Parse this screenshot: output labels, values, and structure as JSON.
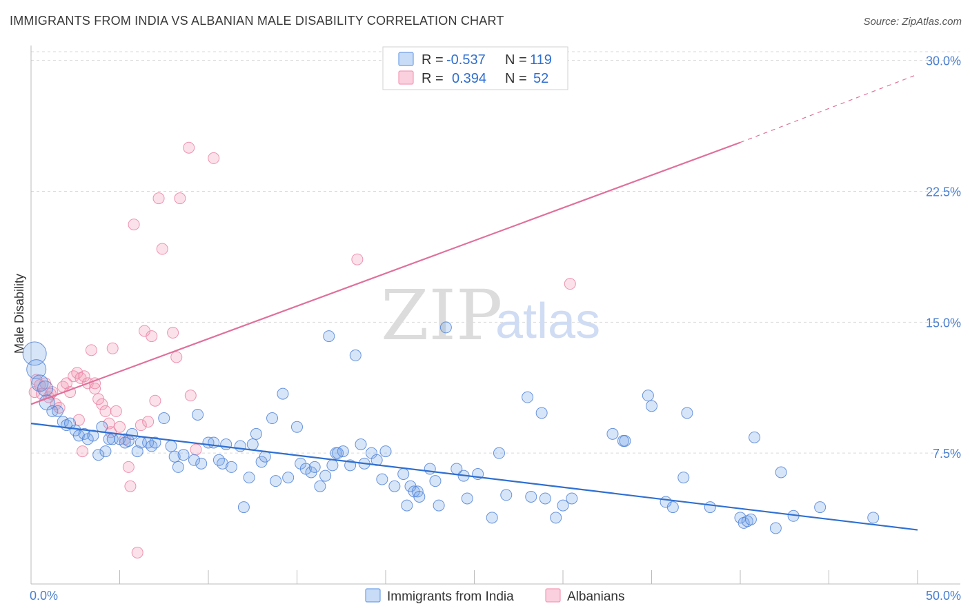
{
  "title": "IMMIGRANTS FROM INDIA VS ALBANIAN MALE DISABILITY CORRELATION CHART",
  "source": "Source: ZipAtlas.com",
  "watermark": {
    "zip": "ZIP",
    "atlas": "atlas"
  },
  "legend": {
    "r_label": "R =",
    "n_label": "N =",
    "rows": [
      {
        "r": "-0.537",
        "n": "119"
      },
      {
        "r": "0.394",
        "n": "52"
      }
    ]
  },
  "colors": {
    "india": "#6fa0e6",
    "india_line": "#2f6fd0",
    "albanians": "#f29bb6",
    "albanians_line": "#e0709a",
    "grid": "#d9d9d9",
    "axis_text": "#4a7fd0"
  },
  "chart_data": {
    "type": "scatter",
    "title": "IMMIGRANTS FROM INDIA VS ALBANIAN MALE DISABILITY CORRELATION CHART",
    "xlabel": "",
    "ylabel": "Male Disability",
    "xlim": [
      0,
      50
    ],
    "ylim": [
      0,
      30.5
    ],
    "x_tick_labels": [
      "0.0%",
      "50.0%"
    ],
    "y_ticks": [
      7.5,
      15.0,
      22.5,
      30.0
    ],
    "y_tick_labels": [
      "7.5%",
      "15.0%",
      "22.5%",
      "30.0%"
    ],
    "grid": "horizontal dashed",
    "legend_position": "top-center",
    "series": [
      {
        "name": "Immigrants from India",
        "r": -0.537,
        "n": 119,
        "trend": {
          "x0": 0,
          "y0": 9.2,
          "x1": 50,
          "y1": 3.1,
          "style": "solid"
        },
        "points": [
          [
            0.2,
            13.2
          ],
          [
            0.3,
            12.3
          ],
          [
            0.5,
            11.5
          ],
          [
            0.8,
            11.2
          ],
          [
            0.9,
            10.4
          ],
          [
            1.2,
            9.9
          ],
          [
            1.5,
            9.9
          ],
          [
            1.8,
            9.3
          ],
          [
            2.0,
            9.1
          ],
          [
            2.2,
            9.2
          ],
          [
            2.5,
            8.8
          ],
          [
            2.7,
            8.5
          ],
          [
            3.0,
            8.6
          ],
          [
            3.2,
            8.3
          ],
          [
            3.5,
            8.5
          ],
          [
            3.8,
            7.4
          ],
          [
            4.0,
            9.0
          ],
          [
            4.2,
            7.6
          ],
          [
            4.4,
            8.3
          ],
          [
            4.6,
            8.3
          ],
          [
            5.0,
            8.3
          ],
          [
            5.3,
            8.1
          ],
          [
            5.5,
            8.2
          ],
          [
            5.7,
            8.6
          ],
          [
            6.0,
            7.6
          ],
          [
            6.2,
            8.1
          ],
          [
            6.6,
            8.1
          ],
          [
            6.8,
            7.9
          ],
          [
            7.0,
            8.1
          ],
          [
            7.5,
            9.5
          ],
          [
            7.9,
            7.9
          ],
          [
            8.1,
            7.3
          ],
          [
            8.3,
            6.7
          ],
          [
            8.6,
            7.4
          ],
          [
            9.2,
            7.1
          ],
          [
            9.4,
            9.7
          ],
          [
            9.6,
            6.9
          ],
          [
            10.0,
            8.1
          ],
          [
            10.3,
            8.1
          ],
          [
            10.6,
            7.1
          ],
          [
            10.8,
            6.9
          ],
          [
            11.0,
            8.0
          ],
          [
            11.3,
            6.7
          ],
          [
            11.8,
            7.9
          ],
          [
            12.0,
            4.4
          ],
          [
            12.3,
            6.1
          ],
          [
            12.5,
            8.0
          ],
          [
            12.7,
            8.6
          ],
          [
            13.0,
            7.0
          ],
          [
            13.2,
            7.3
          ],
          [
            13.6,
            9.5
          ],
          [
            13.8,
            5.9
          ],
          [
            14.2,
            10.9
          ],
          [
            14.5,
            6.1
          ],
          [
            15.0,
            9.0
          ],
          [
            15.2,
            6.9
          ],
          [
            15.5,
            6.6
          ],
          [
            15.8,
            6.4
          ],
          [
            16.0,
            6.7
          ],
          [
            16.3,
            5.6
          ],
          [
            16.6,
            6.2
          ],
          [
            16.8,
            14.2
          ],
          [
            17.0,
            6.8
          ],
          [
            17.2,
            7.5
          ],
          [
            17.6,
            7.6
          ],
          [
            18.0,
            6.8
          ],
          [
            18.3,
            13.1
          ],
          [
            18.6,
            8.0
          ],
          [
            18.8,
            6.9
          ],
          [
            19.2,
            7.5
          ],
          [
            19.5,
            7.1
          ],
          [
            19.8,
            6.0
          ],
          [
            20.0,
            7.6
          ],
          [
            20.5,
            5.6
          ],
          [
            21.0,
            6.3
          ],
          [
            21.2,
            4.5
          ],
          [
            21.4,
            5.6
          ],
          [
            21.6,
            5.3
          ],
          [
            21.8,
            5.3
          ],
          [
            22.5,
            6.6
          ],
          [
            22.8,
            5.9
          ],
          [
            23.0,
            4.5
          ],
          [
            23.4,
            14.7
          ],
          [
            24.0,
            6.6
          ],
          [
            24.4,
            6.2
          ],
          [
            24.6,
            4.9
          ],
          [
            25.2,
            6.3
          ],
          [
            26.0,
            3.8
          ],
          [
            26.4,
            7.5
          ],
          [
            26.8,
            5.1
          ],
          [
            28.0,
            10.7
          ],
          [
            28.2,
            5.0
          ],
          [
            28.8,
            9.8
          ],
          [
            29.0,
            4.9
          ],
          [
            29.6,
            3.8
          ],
          [
            30.0,
            4.5
          ],
          [
            32.8,
            8.6
          ],
          [
            33.4,
            8.2
          ],
          [
            34.8,
            10.8
          ],
          [
            35.0,
            10.2
          ],
          [
            35.8,
            4.7
          ],
          [
            36.2,
            4.4
          ],
          [
            36.8,
            6.1
          ],
          [
            37.0,
            9.8
          ],
          [
            38.3,
            4.4
          ],
          [
            40.0,
            3.8
          ],
          [
            40.2,
            3.5
          ],
          [
            40.4,
            3.6
          ],
          [
            40.8,
            8.4
          ],
          [
            42.0,
            3.2
          ],
          [
            42.3,
            6.4
          ],
          [
            43.0,
            3.9
          ],
          [
            44.5,
            4.4
          ],
          [
            47.5,
            3.8
          ],
          [
            40.6,
            3.7
          ],
          [
            33.5,
            8.2
          ],
          [
            30.5,
            4.9
          ],
          [
            17.3,
            7.5
          ],
          [
            21.9,
            5.0
          ]
        ]
      },
      {
        "name": "Albanians",
        "r": 0.394,
        "n": 52,
        "trend": {
          "x0": 0,
          "y0": 10.3,
          "x1": 40,
          "y1": 25.3,
          "style": "solid",
          "dash_x0": 40,
          "dash_y0": 25.3,
          "dash_x1": 50,
          "dash_y1": 29.2
        },
        "points": [
          [
            0.2,
            11.0
          ],
          [
            0.3,
            11.7
          ],
          [
            0.5,
            11.4
          ],
          [
            0.6,
            10.9
          ],
          [
            0.8,
            11.5
          ],
          [
            1.0,
            10.7
          ],
          [
            1.2,
            11.0
          ],
          [
            1.4,
            10.3
          ],
          [
            1.6,
            10.1
          ],
          [
            1.8,
            11.3
          ],
          [
            2.0,
            11.5
          ],
          [
            2.2,
            11.0
          ],
          [
            2.4,
            11.9
          ],
          [
            2.6,
            12.1
          ],
          [
            2.8,
            11.8
          ],
          [
            3.0,
            11.9
          ],
          [
            3.2,
            11.5
          ],
          [
            3.4,
            13.4
          ],
          [
            3.6,
            11.2
          ],
          [
            3.8,
            10.6
          ],
          [
            4.0,
            10.3
          ],
          [
            4.2,
            9.9
          ],
          [
            4.4,
            9.2
          ],
          [
            4.6,
            13.5
          ],
          [
            4.8,
            9.9
          ],
          [
            5.0,
            9.0
          ],
          [
            5.3,
            8.3
          ],
          [
            5.5,
            6.7
          ],
          [
            5.6,
            5.6
          ],
          [
            5.8,
            20.6
          ],
          [
            6.0,
            1.8
          ],
          [
            6.2,
            9.1
          ],
          [
            6.4,
            14.5
          ],
          [
            6.6,
            9.3
          ],
          [
            6.8,
            14.2
          ],
          [
            7.0,
            10.5
          ],
          [
            7.2,
            22.1
          ],
          [
            7.4,
            19.2
          ],
          [
            8.0,
            14.4
          ],
          [
            8.2,
            13.0
          ],
          [
            8.4,
            22.1
          ],
          [
            8.9,
            25.0
          ],
          [
            9.0,
            10.8
          ],
          [
            9.3,
            7.7
          ],
          [
            10.3,
            24.4
          ],
          [
            2.9,
            7.6
          ],
          [
            3.6,
            11.5
          ],
          [
            4.5,
            8.7
          ],
          [
            18.4,
            18.6
          ],
          [
            30.4,
            17.2
          ],
          [
            1.1,
            10.9
          ],
          [
            2.7,
            9.4
          ]
        ]
      }
    ]
  }
}
